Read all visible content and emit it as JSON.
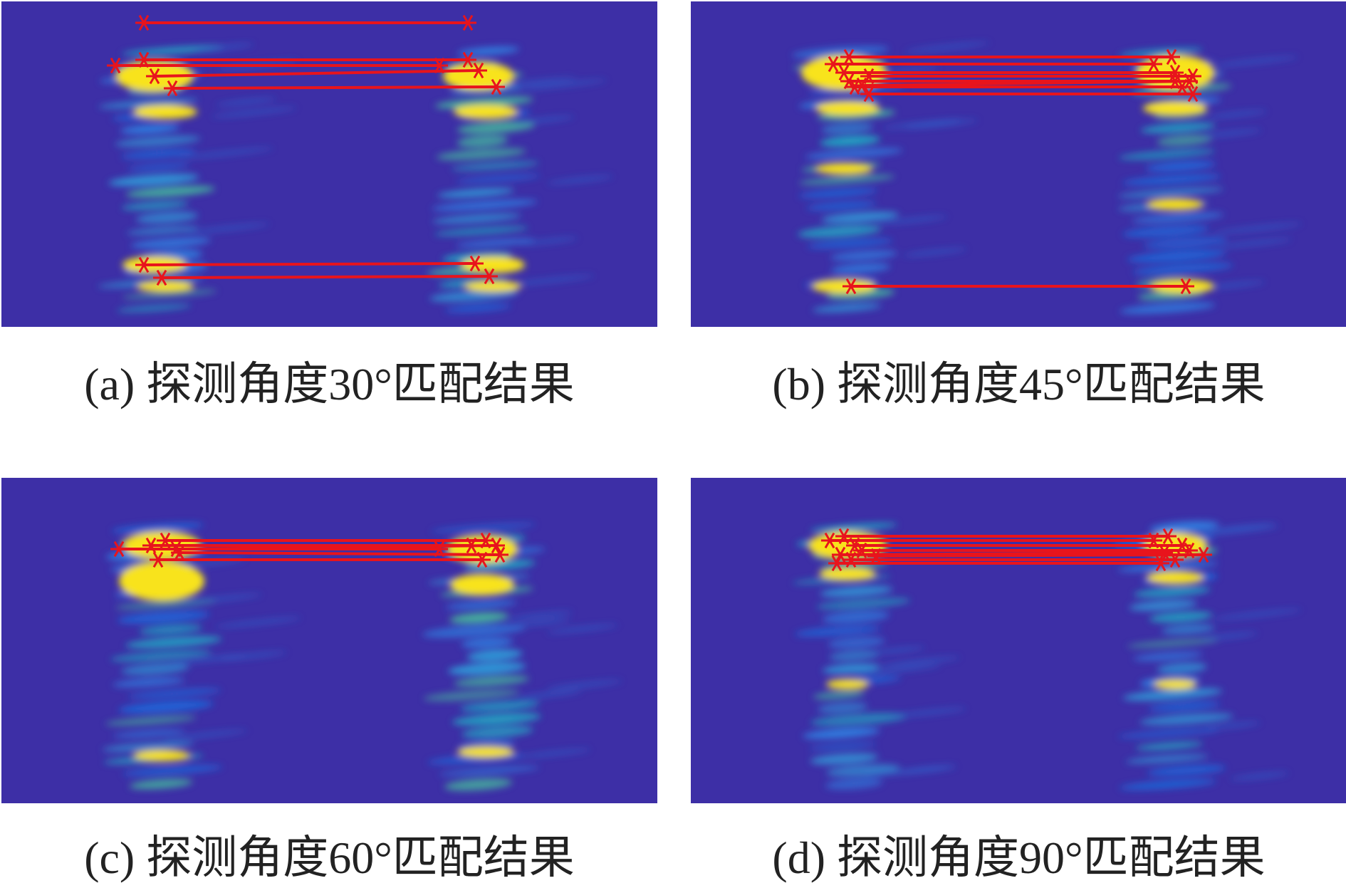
{
  "panels": [
    {
      "caption": "(a) 探测角度30°匹配结果"
    },
    {
      "caption": "(b) 探测角度45°匹配结果"
    },
    {
      "caption": "(c) 探测角度60°匹配结果"
    },
    {
      "caption": "(d) 探测角度90°匹配结果"
    }
  ]
}
